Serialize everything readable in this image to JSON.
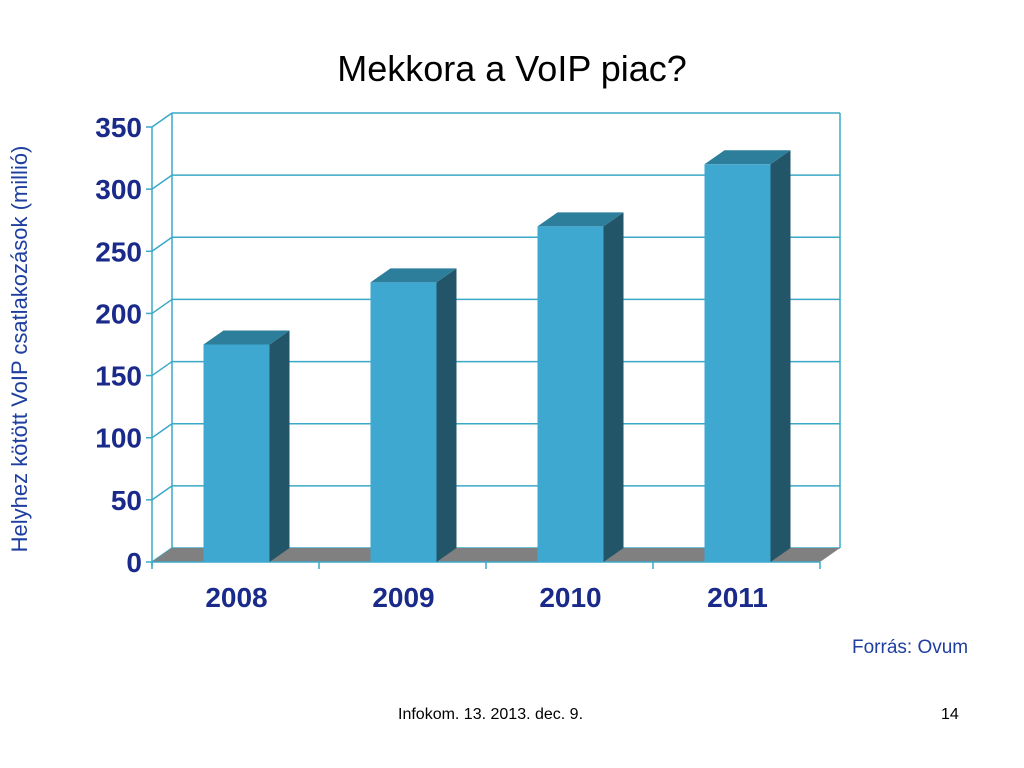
{
  "slide": {
    "title": "Mekkora a VoIP piac?",
    "source": "Forrás: Ovum",
    "footer": "Infokom. 13. 2013. dec. 9.",
    "page_number": "14"
  },
  "chart_data": {
    "type": "bar",
    "categories": [
      "2008",
      "2009",
      "2010",
      "2011"
    ],
    "values": [
      175,
      225,
      270,
      320
    ],
    "ylabel": "Helyhez kötött VoIP csatlakozások (millió)",
    "xlabel": "",
    "ylim": [
      0,
      350
    ],
    "yticks": [
      0,
      50,
      100,
      150,
      200,
      250,
      300,
      350
    ],
    "grid": true,
    "colors": {
      "bar_front": "#3fa8d0",
      "bar_side": "#225567",
      "bar_top": "#2c7e9b",
      "floor": "#808080",
      "grid": "#3aa8c8",
      "labels": "#1a2a8a"
    }
  }
}
